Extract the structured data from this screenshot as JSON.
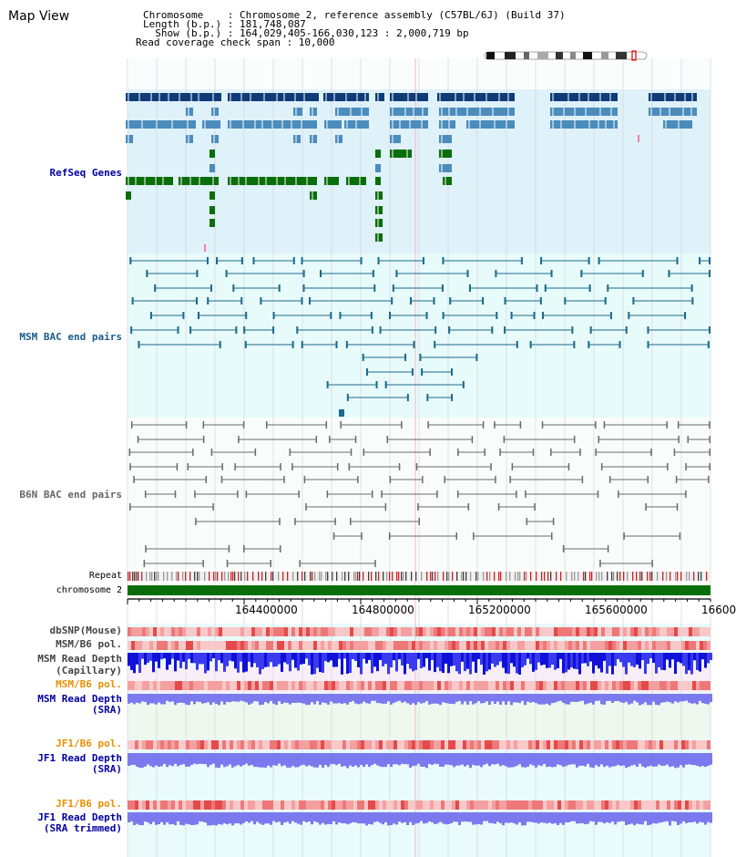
{
  "header": {
    "title": "Map View",
    "line1": "Chromosome    : Chromosome 2, reference assembly (C57BL/6J) (Build 37)",
    "line2": "Length (b.p.) : 181,748,087",
    "line3": "  Show (b.p.) : 164,029,405-166,030,123 : 2,000,719 bp",
    "line4": "Read coverage check span : 10,000"
  },
  "tracks": {
    "refseq": "RefSeq Genes",
    "msm_bac": "MSM BAC end pairs",
    "b6n_bac": "B6N BAC end pairs",
    "repeat": "Repeat",
    "chromosome": "chromosome 2",
    "dbsnp": "dbSNP(Mouse)",
    "msm_pol": "MSM/B6 pol.",
    "msm_depth_cap_1": "MSM Read Depth",
    "msm_depth_cap_2": "(Capillary)",
    "msm_pol_sra": "MSM/B6 pol.",
    "msm_depth_sra_1": "MSM Read Depth",
    "msm_depth_sra_2": "(SRA)",
    "jf1_pol": "JF1/B6 pol.",
    "jf1_depth_1": "JF1 Read Depth",
    "jf1_depth_2": "(SRA)",
    "jf1_pol_trim": "JF1/B6 pol.",
    "jf1_depth_trim_1": "JF1 Read Depth",
    "jf1_depth_trim_2": "(SRA trimmed)"
  },
  "axis": {
    "ticks": [
      "164400000",
      "164800000",
      "165200000",
      "165600000",
      "16600"
    ]
  },
  "colors": {
    "refseq_dark": "#0f3c78",
    "refseq_mid": "#4a8cbc",
    "refseq_green": "#0a6e0a",
    "msm_line": "#1a6a8c",
    "b6n_line": "#6a6a6a",
    "label_blue": "#0000a0",
    "label_teal": "#1a5c8a",
    "label_orange": "#e89000",
    "chromosome_green": "#0a6e0a"
  }
}
